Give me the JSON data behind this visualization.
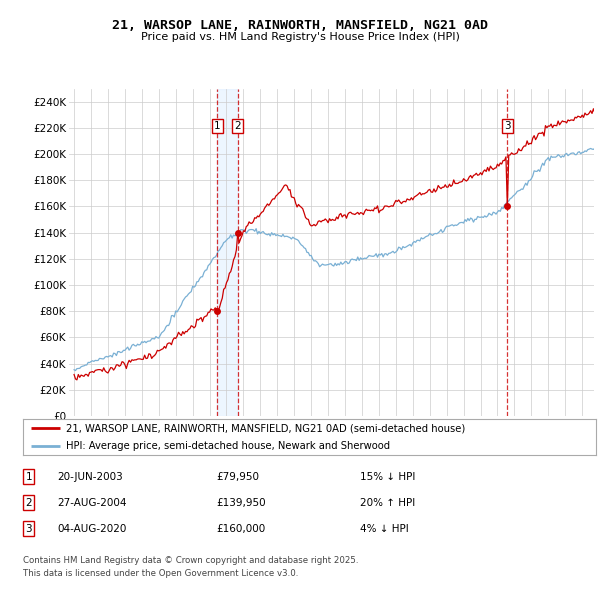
{
  "title_line1": "21, WARSOP LANE, RAINWORTH, MANSFIELD, NG21 0AD",
  "title_line2": "Price paid vs. HM Land Registry's House Price Index (HPI)",
  "background_color": "#ffffff",
  "plot_bg_color": "#ffffff",
  "grid_color": "#cccccc",
  "hpi_color": "#7ab0d4",
  "price_color": "#cc0000",
  "ylim": [
    0,
    250000
  ],
  "yticks": [
    0,
    20000,
    40000,
    60000,
    80000,
    100000,
    120000,
    140000,
    160000,
    180000,
    200000,
    220000,
    240000
  ],
  "ytick_labels": [
    "£0",
    "£20K",
    "£40K",
    "£60K",
    "£80K",
    "£100K",
    "£120K",
    "£140K",
    "£160K",
    "£180K",
    "£200K",
    "£220K",
    "£240K"
  ],
  "xlim_start": 1994.7,
  "xlim_end": 2025.7,
  "sale_events": [
    {
      "label": "1",
      "year": 2003.46,
      "price": 79950
    },
    {
      "label": "2",
      "year": 2004.65,
      "price": 139950
    },
    {
      "label": "3",
      "year": 2020.59,
      "price": 160000
    }
  ],
  "legend_line1": "21, WARSOP LANE, RAINWORTH, MANSFIELD, NG21 0AD (semi-detached house)",
  "legend_line2": "HPI: Average price, semi-detached house, Newark and Sherwood",
  "footer_line1": "Contains HM Land Registry data © Crown copyright and database right 2025.",
  "footer_line2": "This data is licensed under the Open Government Licence v3.0.",
  "table_rows": [
    {
      "label": "1",
      "date": "20-JUN-2003",
      "price": "£79,950",
      "pct": "15% ↓ HPI"
    },
    {
      "label": "2",
      "date": "27-AUG-2004",
      "price": "£139,950",
      "pct": "20% ↑ HPI"
    },
    {
      "label": "3",
      "date": "04-AUG-2020",
      "price": "£160,000",
      "pct": "4% ↓ HPI"
    }
  ]
}
